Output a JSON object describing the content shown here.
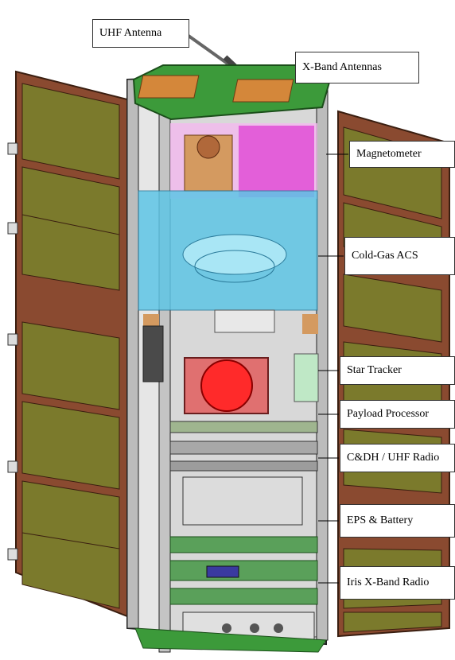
{
  "callouts": {
    "uhf_antenna": "UHF Antenna",
    "xband_antennas": "X-Band Antennas",
    "magnetometer": "Magnetometer",
    "cold_gas_acs": "Cold-Gas ACS",
    "star_tracker": "Star Tracker",
    "payload_processor": "Payload Processor",
    "cdh_uhf_radio": "C&DH / UHF Radio",
    "eps_battery": "EPS & Battery",
    "iris_xband_radio": "Iris X-Band Radio"
  },
  "colors": {
    "solar_frame": "#8a4a30",
    "solar_cell": "#7b7a2c",
    "top_panel": "#3c9a3a",
    "patch_antenna": "#d4873a",
    "magnetometer_bay": "#e35fd9",
    "acs_bay": "#5ec6e6",
    "star_tracker_lens": "#ff2a2a",
    "pcb": "#5aa05a"
  }
}
